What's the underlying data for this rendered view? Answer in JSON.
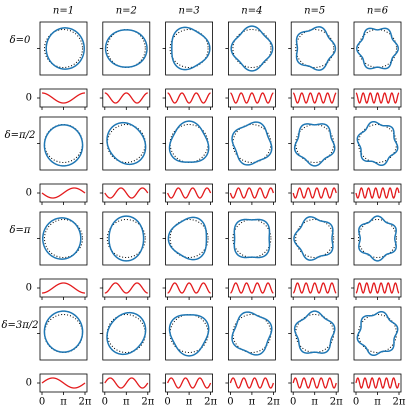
{
  "columns": [
    {
      "label": "n=1",
      "n": 1
    },
    {
      "label": "n=2",
      "n": 2
    },
    {
      "label": "n=3",
      "n": 3
    },
    {
      "label": "n=4",
      "n": 4
    },
    {
      "label": "n=5",
      "n": 5
    },
    {
      "label": "n=6",
      "n": 6
    }
  ],
  "rows": [
    {
      "label": "δ=0",
      "delta": 0
    },
    {
      "label": "δ=π/2",
      "delta": 1.5708
    },
    {
      "label": "δ=π",
      "delta": 3.1416
    },
    {
      "label": "δ=3π/2",
      "delta": 4.7124
    }
  ],
  "wave_ytick": {
    "value": 0,
    "label": "0"
  },
  "xticks": [
    {
      "value": 0,
      "label": "0"
    },
    {
      "value": 3.1416,
      "label": "π"
    },
    {
      "value": 6.2832,
      "label": "2π"
    }
  ],
  "xlim": [
    0,
    6.2832
  ]
}
